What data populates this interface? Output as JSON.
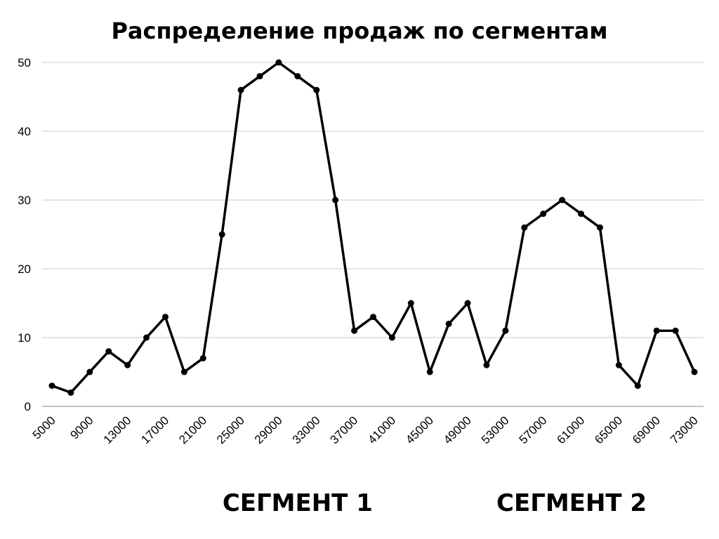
{
  "chart_data": {
    "type": "line",
    "title": "Распределение продаж по сегментам",
    "xlabel": "",
    "ylabel": "",
    "ylim": [
      0,
      50
    ],
    "yticks": [
      0,
      10,
      20,
      30,
      40,
      50
    ],
    "grid": true,
    "legend": "none",
    "line_color": "#000000",
    "x": [
      5000,
      7000,
      9000,
      11000,
      13000,
      15000,
      17000,
      19000,
      21000,
      23000,
      25000,
      27000,
      29000,
      31000,
      33000,
      35000,
      37000,
      39000,
      41000,
      43000,
      45000,
      47000,
      49000,
      51000,
      53000,
      55000,
      57000,
      59000,
      61000,
      63000,
      65000,
      67000,
      69000,
      71000,
      73000
    ],
    "x_tick_labels": [
      "5000",
      "9000",
      "13000",
      "17000",
      "21000",
      "25000",
      "29000",
      "33000",
      "37000",
      "41000",
      "45000",
      "49000",
      "53000",
      "57000",
      "61000",
      "65000",
      "69000",
      "73000"
    ],
    "series": [
      {
        "values": [
          3,
          2,
          5,
          8,
          6,
          10,
          13,
          5,
          7,
          25,
          46,
          48,
          50,
          48,
          46,
          30,
          11,
          13,
          10,
          15,
          5,
          12,
          15,
          6,
          11,
          26,
          28,
          30,
          28,
          26,
          6,
          3,
          11,
          11,
          5
        ]
      }
    ],
    "annotations": [
      {
        "text": "СЕГМЕНТ 1",
        "x": 31000
      },
      {
        "text": "СЕГМЕНТ 2",
        "x": 60000
      }
    ]
  }
}
